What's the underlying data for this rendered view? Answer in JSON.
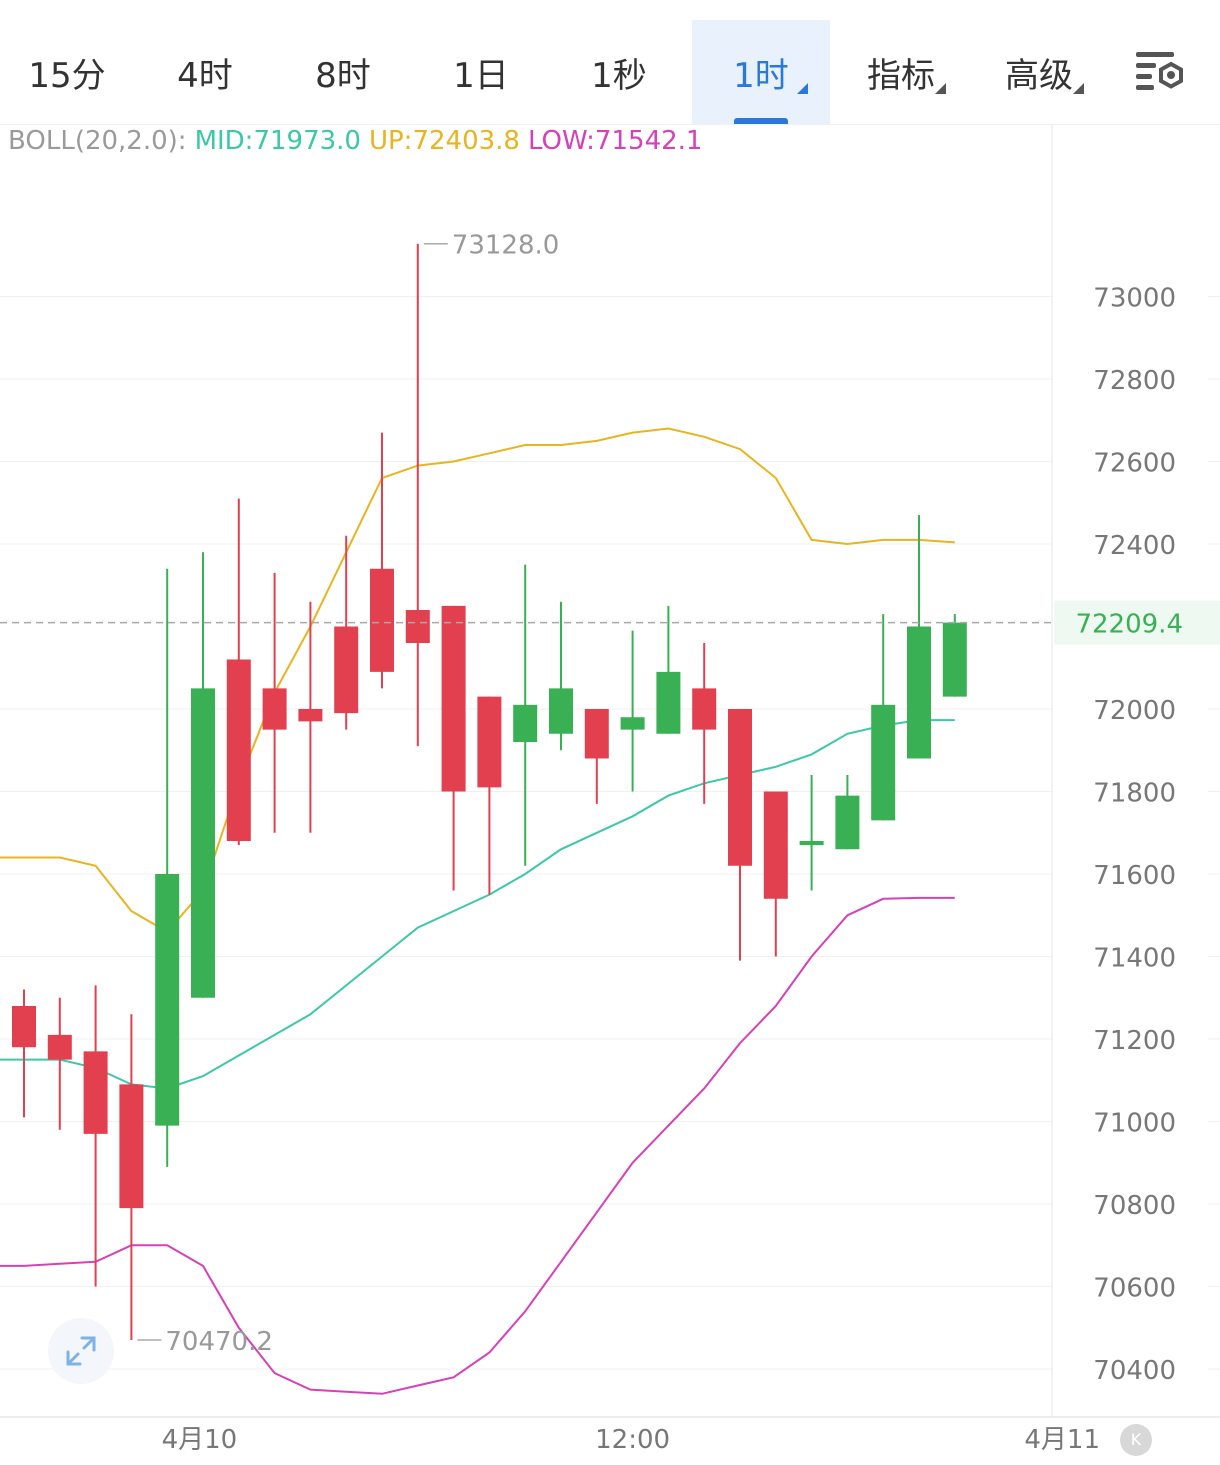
{
  "tabs": [
    {
      "label": "15分",
      "active": false,
      "dropdown": false
    },
    {
      "label": "4时",
      "active": false,
      "dropdown": false
    },
    {
      "label": "8时",
      "active": false,
      "dropdown": false
    },
    {
      "label": "1日",
      "active": false,
      "dropdown": false
    },
    {
      "label": "1秒",
      "active": false,
      "dropdown": false
    },
    {
      "label": "1时",
      "active": true,
      "dropdown": true
    },
    {
      "label": "指标",
      "active": false,
      "dropdown": true
    },
    {
      "label": "高级",
      "active": false,
      "dropdown": true
    }
  ],
  "settings_icon": "chart-settings-icon",
  "indicator": {
    "name": "BOLL(20,2.0):",
    "mid": "MID:71973.0",
    "up": "UP:72403.8",
    "low": "LOW:71542.1"
  },
  "colors": {
    "up": "#3ab054",
    "down": "#e2404f",
    "mid": "#3cc8a8",
    "upper": "#e8b420",
    "lower": "#d640b8",
    "accent": "#2a78d8"
  },
  "expand_icon": "expand-arrows-icon",
  "k_icon": "K",
  "chart_data": {
    "type": "candlestick",
    "ylim": [
      70320,
      73400
    ],
    "yticks": [
      73000,
      72800,
      72600,
      72400,
      72000,
      71800,
      71600,
      71400,
      71200,
      71000,
      70800,
      70600,
      70400
    ],
    "xticks": [
      {
        "label": "4月10",
        "index": 4.9
      },
      {
        "label": "12:00",
        "index": 17.0
      },
      {
        "label": "4月11",
        "index": 29.0
      }
    ],
    "last_price": 72209.4,
    "annotations": {
      "high": 73128.0,
      "low": 70470.2,
      "high_index": 11,
      "low_index": 3
    },
    "candles": [
      {
        "o": 71280,
        "h": 71320,
        "l": 71010,
        "c": 71180
      },
      {
        "o": 71210,
        "h": 71300,
        "l": 70980,
        "c": 71150
      },
      {
        "o": 71170,
        "h": 71330,
        "l": 70600,
        "c": 70970
      },
      {
        "o": 71090,
        "h": 71260,
        "l": 70470.2,
        "c": 70790
      },
      {
        "o": 70990,
        "h": 72340,
        "l": 70890,
        "c": 71600
      },
      {
        "o": 71300,
        "h": 72380,
        "l": 71300,
        "c": 72050
      },
      {
        "o": 72120,
        "h": 72510,
        "l": 71670,
        "c": 71680
      },
      {
        "o": 72050,
        "h": 72330,
        "l": 71700,
        "c": 71950
      },
      {
        "o": 72000,
        "h": 72260,
        "l": 71700,
        "c": 71970
      },
      {
        "o": 72200,
        "h": 72420,
        "l": 71950,
        "c": 71990
      },
      {
        "o": 72340,
        "h": 72670,
        "l": 72050,
        "c": 72090
      },
      {
        "o": 72240,
        "h": 73128.0,
        "l": 71910,
        "c": 72160
      },
      {
        "o": 72250,
        "h": 72250,
        "l": 71560,
        "c": 71800
      },
      {
        "o": 72030,
        "h": 72030,
        "l": 71550,
        "c": 71810
      },
      {
        "o": 71920,
        "h": 72350,
        "l": 71620,
        "c": 72010
      },
      {
        "o": 71940,
        "h": 72260,
        "l": 71900,
        "c": 72050
      },
      {
        "o": 72000,
        "h": 72000,
        "l": 71770,
        "c": 71880
      },
      {
        "o": 71950,
        "h": 72190,
        "l": 71800,
        "c": 71980
      },
      {
        "o": 71940,
        "h": 72250,
        "l": 71940,
        "c": 72090
      },
      {
        "o": 72050,
        "h": 72160,
        "l": 71770,
        "c": 71950
      },
      {
        "o": 72000,
        "h": 72000,
        "l": 71390,
        "c": 71620
      },
      {
        "o": 71800,
        "h": 71800,
        "l": 71400,
        "c": 71540
      },
      {
        "o": 71670,
        "h": 71840,
        "l": 71560,
        "c": 71680
      },
      {
        "o": 71660,
        "h": 71840,
        "l": 71660,
        "c": 71790
      },
      {
        "o": 71730,
        "h": 72230,
        "l": 71730,
        "c": 72010
      },
      {
        "o": 71880,
        "h": 72470,
        "l": 71880,
        "c": 72200
      },
      {
        "o": 72030,
        "h": 72230,
        "l": 72030,
        "c": 72209.4
      }
    ],
    "series": [
      {
        "values": [
          71150,
          71150,
          71130,
          71090,
          71080,
          71110,
          71160,
          71210,
          71260,
          71330,
          71400,
          71470,
          71510,
          71550,
          71600,
          71660,
          71700,
          71740,
          71790,
          71820,
          71840,
          71860,
          71890,
          71940,
          71960,
          71973,
          71973
        ]
      },
      {
        "values": [
          71640,
          71640,
          71620,
          71510,
          71460,
          71560,
          71820,
          72040,
          72200,
          72380,
          72560,
          72590,
          72600,
          72620,
          72640,
          72640,
          72650,
          72670,
          72680,
          72660,
          72630,
          72560,
          72410,
          72400,
          72410,
          72410,
          72404
        ]
      },
      {
        "values": [
          70650,
          70655,
          70660,
          70700,
          70700,
          70650,
          70500,
          70390,
          70350,
          70345,
          70340,
          70360,
          70380,
          70440,
          70540,
          70660,
          70780,
          70900,
          70990,
          71080,
          71190,
          71280,
          71400,
          71500,
          71540,
          71542,
          71542
        ]
      }
    ]
  }
}
